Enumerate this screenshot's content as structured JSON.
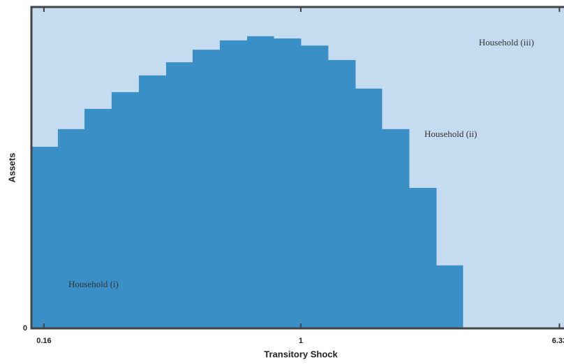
{
  "chart_data": {
    "type": "histogram",
    "xlabel": "Transitory Shock",
    "ylabel": "Assets",
    "xscale": "log",
    "bins": [
      0.1463,
      0.1767,
      0.2136,
      0.2593,
      0.315,
      0.3825,
      0.4621,
      0.561,
      0.6816,
      0.8236,
      1,
      1.214,
      1.475,
      1.782,
      2.164,
      2.628,
      3.175
    ],
    "values": [
      56.5,
      62,
      68.3,
      73.5,
      78.7,
      82.8,
      86.7,
      89.6,
      90.9,
      90.2,
      88,
      83.5,
      74.6,
      62,
      43.7,
      19.6
    ],
    "color": "#3a8fc7",
    "background": "#c5dbef",
    "xlim": [
      0.1463,
      6.54
    ],
    "ylim": [
      0,
      100
    ],
    "xticks": [
      0.16,
      1,
      6.33
    ],
    "yticks": [
      0
    ],
    "annotations": [
      "Household (i)",
      "Household (ii)",
      "Household (iii)"
    ]
  }
}
